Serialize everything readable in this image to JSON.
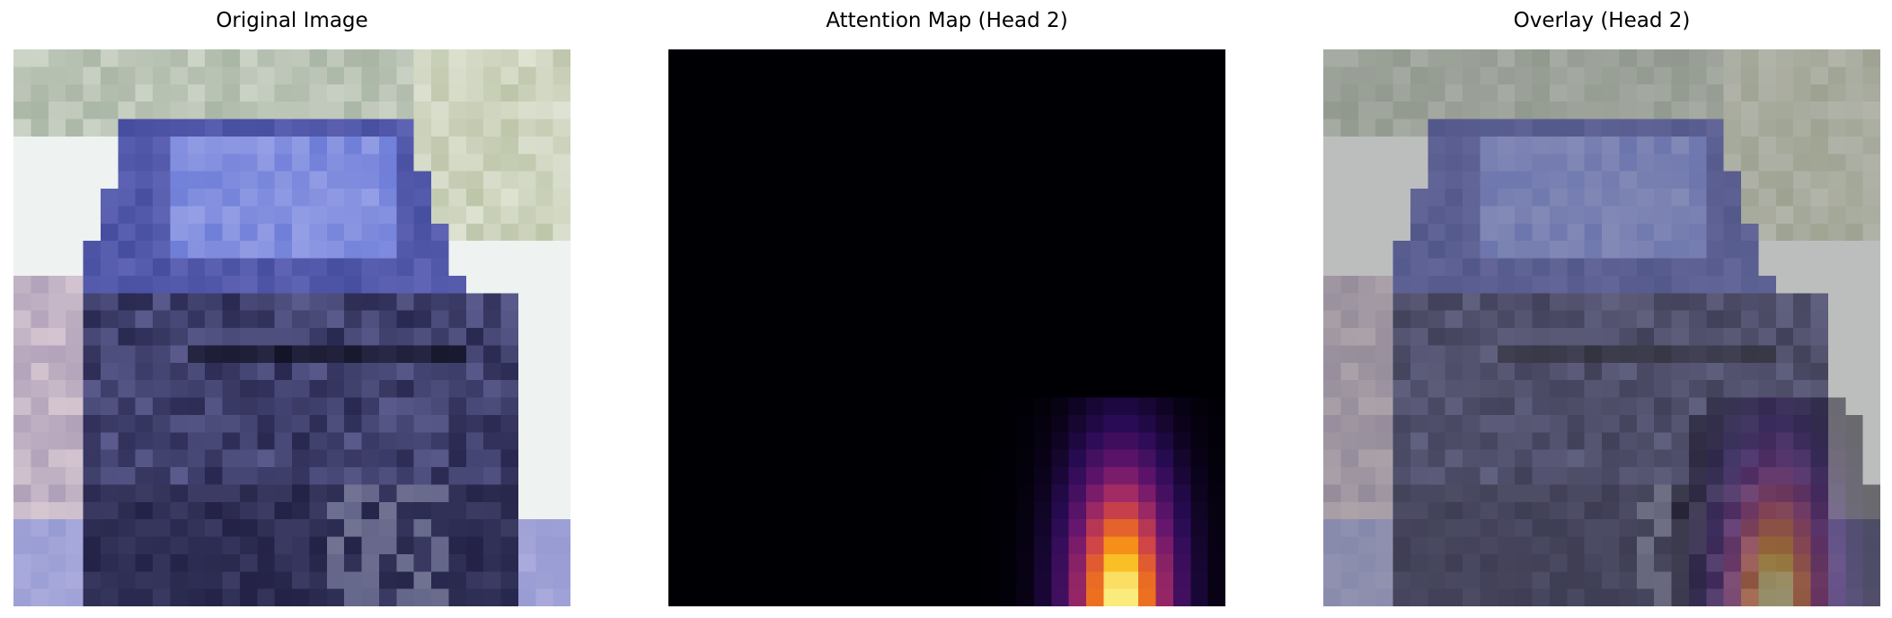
{
  "figure": {
    "panels": [
      {
        "title": "Original Image"
      },
      {
        "title": "Attention Map (Head 2)"
      },
      {
        "title": "Overlay (Head 2)"
      }
    ]
  },
  "attention": {
    "colormap": "inferno",
    "head": 2
  }
}
